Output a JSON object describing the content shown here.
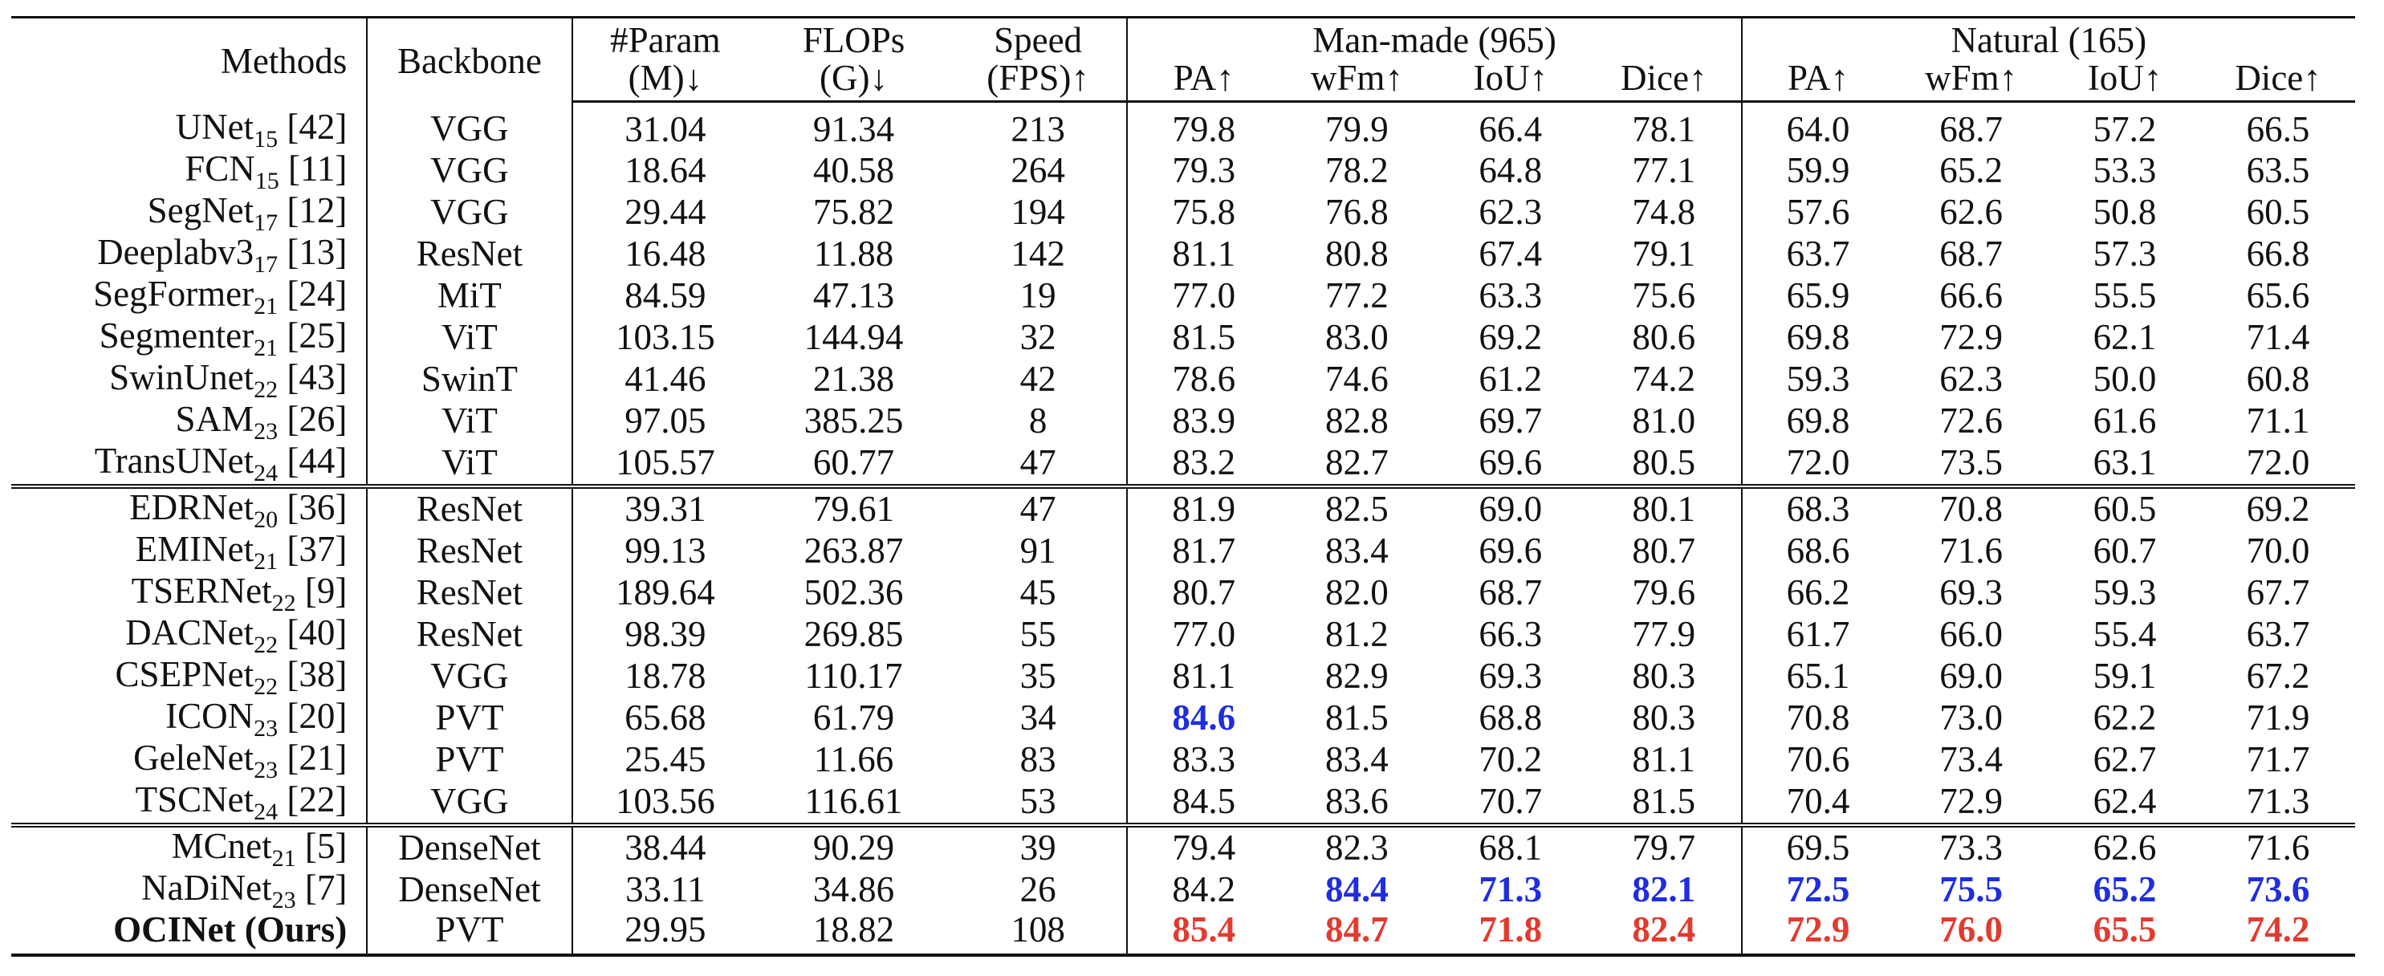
{
  "header": {
    "methods": "Methods",
    "backbone": "Backbone",
    "param_1": "#Param",
    "param_2": "(M)↓",
    "flops_1": "FLOPs",
    "flops_2": "(G)↓",
    "speed_1": "Speed",
    "speed_2": "(FPS)↑",
    "group_man": "Man-made (965)",
    "group_nat": "Natural (165)",
    "metrics": [
      "PA↑",
      "wFm↑",
      "IoU↑",
      "Dice↑"
    ]
  },
  "sections": [
    [
      {
        "name": "UNet",
        "sub": "15",
        "ref": "[42]",
        "backbone": "VGG",
        "param": "31.04",
        "flops": "91.34",
        "speed": "213",
        "man": [
          "79.8",
          "79.9",
          "66.4",
          "78.1"
        ],
        "nat": [
          "64.0",
          "68.7",
          "57.2",
          "66.5"
        ]
      },
      {
        "name": "FCN",
        "sub": "15",
        "ref": "[11]",
        "backbone": "VGG",
        "param": "18.64",
        "flops": "40.58",
        "speed": "264",
        "man": [
          "79.3",
          "78.2",
          "64.8",
          "77.1"
        ],
        "nat": [
          "59.9",
          "65.2",
          "53.3",
          "63.5"
        ]
      },
      {
        "name": "SegNet",
        "sub": "17",
        "ref": "[12]",
        "backbone": "VGG",
        "param": "29.44",
        "flops": "75.82",
        "speed": "194",
        "man": [
          "75.8",
          "76.8",
          "62.3",
          "74.8"
        ],
        "nat": [
          "57.6",
          "62.6",
          "50.8",
          "60.5"
        ]
      },
      {
        "name": "Deeplabv3",
        "sub": "17",
        "ref": "[13]",
        "backbone": "ResNet",
        "param": "16.48",
        "flops": "11.88",
        "speed": "142",
        "man": [
          "81.1",
          "80.8",
          "67.4",
          "79.1"
        ],
        "nat": [
          "63.7",
          "68.7",
          "57.3",
          "66.8"
        ]
      },
      {
        "name": "SegFormer",
        "sub": "21",
        "ref": "[24]",
        "backbone": "MiT",
        "param": "84.59",
        "flops": "47.13",
        "speed": "19",
        "man": [
          "77.0",
          "77.2",
          "63.3",
          "75.6"
        ],
        "nat": [
          "65.9",
          "66.6",
          "55.5",
          "65.6"
        ]
      },
      {
        "name": "Segmenter",
        "sub": "21",
        "ref": "[25]",
        "backbone": "ViT",
        "param": "103.15",
        "flops": "144.94",
        "speed": "32",
        "man": [
          "81.5",
          "83.0",
          "69.2",
          "80.6"
        ],
        "nat": [
          "69.8",
          "72.9",
          "62.1",
          "71.4"
        ]
      },
      {
        "name": "SwinUnet",
        "sub": "22",
        "ref": "[43]",
        "backbone": "SwinT",
        "param": "41.46",
        "flops": "21.38",
        "speed": "42",
        "man": [
          "78.6",
          "74.6",
          "61.2",
          "74.2"
        ],
        "nat": [
          "59.3",
          "62.3",
          "50.0",
          "60.8"
        ]
      },
      {
        "name": "SAM",
        "sub": "23",
        "ref": "[26]",
        "backbone": "ViT",
        "param": "97.05",
        "flops": "385.25",
        "speed": "8",
        "man": [
          "83.9",
          "82.8",
          "69.7",
          "81.0"
        ],
        "nat": [
          "69.8",
          "72.6",
          "61.6",
          "71.1"
        ]
      },
      {
        "name": "TransUNet",
        "sub": "24",
        "ref": "[44]",
        "backbone": "ViT",
        "param": "105.57",
        "flops": "60.77",
        "speed": "47",
        "man": [
          "83.2",
          "82.7",
          "69.6",
          "80.5"
        ],
        "nat": [
          "72.0",
          "73.5",
          "63.1",
          "72.0"
        ]
      }
    ],
    [
      {
        "name": "EDRNet",
        "sub": "20",
        "ref": "[36]",
        "backbone": "ResNet",
        "param": "39.31",
        "flops": "79.61",
        "speed": "47",
        "man": [
          "81.9",
          "82.5",
          "69.0",
          "80.1"
        ],
        "nat": [
          "68.3",
          "70.8",
          "60.5",
          "69.2"
        ]
      },
      {
        "name": "EMINet",
        "sub": "21",
        "ref": "[37]",
        "backbone": "ResNet",
        "param": "99.13",
        "flops": "263.87",
        "speed": "91",
        "man": [
          "81.7",
          "83.4",
          "69.6",
          "80.7"
        ],
        "nat": [
          "68.6",
          "71.6",
          "60.7",
          "70.0"
        ]
      },
      {
        "name": "TSERNet",
        "sub": "22",
        "ref": "[9]",
        "backbone": "ResNet",
        "param": "189.64",
        "flops": "502.36",
        "speed": "45",
        "man": [
          "80.7",
          "82.0",
          "68.7",
          "79.6"
        ],
        "nat": [
          "66.2",
          "69.3",
          "59.3",
          "67.7"
        ]
      },
      {
        "name": "DACNet",
        "sub": "22",
        "ref": "[40]",
        "backbone": "ResNet",
        "param": "98.39",
        "flops": "269.85",
        "speed": "55",
        "man": [
          "77.0",
          "81.2",
          "66.3",
          "77.9"
        ],
        "nat": [
          "61.7",
          "66.0",
          "55.4",
          "63.7"
        ]
      },
      {
        "name": "CSEPNet",
        "sub": "22",
        "ref": "[38]",
        "backbone": "VGG",
        "param": "18.78",
        "flops": "110.17",
        "speed": "35",
        "man": [
          "81.1",
          "82.9",
          "69.3",
          "80.3"
        ],
        "nat": [
          "65.1",
          "69.0",
          "59.1",
          "67.2"
        ]
      },
      {
        "name": "ICON",
        "sub": "23",
        "ref": "[20]",
        "backbone": "PVT",
        "param": "65.68",
        "flops": "61.79",
        "speed": "34",
        "man": [
          "84.6",
          "81.5",
          "68.8",
          "80.3"
        ],
        "nat": [
          "70.8",
          "73.0",
          "62.2",
          "71.9"
        ],
        "man_style": [
          "blue",
          "",
          "",
          ""
        ]
      },
      {
        "name": "GeleNet",
        "sub": "23",
        "ref": "[21]",
        "backbone": "PVT",
        "param": "25.45",
        "flops": "11.66",
        "speed": "83",
        "man": [
          "83.3",
          "83.4",
          "70.2",
          "81.1"
        ],
        "nat": [
          "70.6",
          "73.4",
          "62.7",
          "71.7"
        ]
      },
      {
        "name": "TSCNet",
        "sub": "24",
        "ref": "[22]",
        "backbone": "VGG",
        "param": "103.56",
        "flops": "116.61",
        "speed": "53",
        "man": [
          "84.5",
          "83.6",
          "70.7",
          "81.5"
        ],
        "nat": [
          "70.4",
          "72.9",
          "62.4",
          "71.3"
        ]
      }
    ],
    [
      {
        "name": "MCnet",
        "sub": "21",
        "ref": "[5]",
        "backbone": "DenseNet",
        "param": "38.44",
        "flops": "90.29",
        "speed": "39",
        "man": [
          "79.4",
          "82.3",
          "68.1",
          "79.7"
        ],
        "nat": [
          "69.5",
          "73.3",
          "62.6",
          "71.6"
        ]
      },
      {
        "name": "NaDiNet",
        "sub": "23",
        "ref": "[7]",
        "backbone": "DenseNet",
        "param": "33.11",
        "flops": "34.86",
        "speed": "26",
        "man": [
          "84.2",
          "84.4",
          "71.3",
          "82.1"
        ],
        "nat": [
          "72.5",
          "75.5",
          "65.2",
          "73.6"
        ],
        "man_style": [
          "",
          "blue",
          "blue",
          "blue"
        ],
        "nat_style": [
          "blue",
          "blue",
          "blue",
          "blue"
        ]
      },
      {
        "name": "OCINet (Ours)",
        "sub": "",
        "ref": "",
        "bold": true,
        "backbone": "PVT",
        "param": "29.95",
        "flops": "18.82",
        "speed": "108",
        "man": [
          "85.4",
          "84.7",
          "71.8",
          "82.4"
        ],
        "nat": [
          "72.9",
          "76.0",
          "65.5",
          "74.2"
        ],
        "man_style": [
          "red",
          "red",
          "red",
          "red"
        ],
        "nat_style": [
          "red",
          "red",
          "red",
          "red"
        ]
      }
    ]
  ],
  "colors": {
    "best": "#e23b2e",
    "second": "#1f2de0"
  }
}
